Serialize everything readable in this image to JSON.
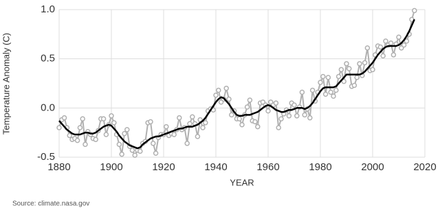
{
  "chart_data": {
    "type": "line",
    "y_label": "Temperature Anomaly (C)",
    "x_label": "YEAR",
    "source": "Source: climate.nasa.gov",
    "x": [
      1880,
      1881,
      1882,
      1883,
      1884,
      1885,
      1886,
      1887,
      1888,
      1889,
      1890,
      1891,
      1892,
      1893,
      1894,
      1895,
      1896,
      1897,
      1898,
      1899,
      1900,
      1901,
      1902,
      1903,
      1904,
      1905,
      1906,
      1907,
      1908,
      1909,
      1910,
      1911,
      1912,
      1913,
      1914,
      1915,
      1916,
      1917,
      1918,
      1919,
      1920,
      1921,
      1922,
      1923,
      1924,
      1925,
      1926,
      1927,
      1928,
      1929,
      1930,
      1931,
      1932,
      1933,
      1934,
      1935,
      1936,
      1937,
      1938,
      1939,
      1940,
      1941,
      1942,
      1943,
      1944,
      1945,
      1946,
      1947,
      1948,
      1949,
      1950,
      1951,
      1952,
      1953,
      1954,
      1955,
      1956,
      1957,
      1958,
      1959,
      1960,
      1961,
      1962,
      1963,
      1964,
      1965,
      1966,
      1967,
      1968,
      1969,
      1970,
      1971,
      1972,
      1973,
      1974,
      1975,
      1976,
      1977,
      1978,
      1979,
      1980,
      1981,
      1982,
      1983,
      1984,
      1985,
      1986,
      1987,
      1988,
      1989,
      1990,
      1991,
      1992,
      1993,
      1994,
      1995,
      1996,
      1997,
      1998,
      1999,
      2000,
      2001,
      2002,
      2003,
      2004,
      2005,
      2006,
      2007,
      2008,
      2009,
      2010,
      2011,
      2012,
      2013,
      2014,
      2015,
      2016
    ],
    "series": [
      {
        "color": "#b0b0b0",
        "markers": true,
        "values": [
          -0.2,
          -0.12,
          -0.1,
          -0.2,
          -0.28,
          -0.32,
          -0.31,
          -0.33,
          -0.2,
          -0.11,
          -0.37,
          -0.24,
          -0.27,
          -0.31,
          -0.32,
          -0.23,
          -0.11,
          -0.11,
          -0.27,
          -0.17,
          -0.08,
          -0.15,
          -0.27,
          -0.37,
          -0.47,
          -0.26,
          -0.22,
          -0.39,
          -0.43,
          -0.48,
          -0.43,
          -0.44,
          -0.36,
          -0.34,
          -0.15,
          -0.14,
          -0.36,
          -0.46,
          -0.3,
          -0.27,
          -0.27,
          -0.19,
          -0.28,
          -0.26,
          -0.27,
          -0.22,
          -0.1,
          -0.22,
          -0.2,
          -0.36,
          -0.16,
          -0.09,
          -0.16,
          -0.29,
          -0.12,
          -0.2,
          -0.15,
          -0.03,
          -0.01,
          -0.02,
          0.13,
          0.18,
          0.06,
          0.09,
          0.2,
          0.09,
          -0.07,
          -0.03,
          -0.11,
          -0.11,
          -0.17,
          -0.07,
          0.01,
          0.08,
          -0.13,
          -0.14,
          -0.19,
          0.05,
          0.06,
          0.03,
          -0.03,
          0.06,
          0.03,
          0.05,
          -0.2,
          -0.11,
          -0.06,
          -0.02,
          -0.08,
          0.05,
          0.03,
          -0.08,
          0.01,
          0.16,
          -0.07,
          -0.01,
          -0.1,
          0.18,
          0.07,
          0.16,
          0.26,
          0.32,
          0.14,
          0.31,
          0.16,
          0.12,
          0.18,
          0.32,
          0.39,
          0.27,
          0.45,
          0.4,
          0.22,
          0.23,
          0.31,
          0.45,
          0.33,
          0.46,
          0.61,
          0.38,
          0.39,
          0.54,
          0.63,
          0.62,
          0.53,
          0.68,
          0.64,
          0.66,
          0.54,
          0.65,
          0.72,
          0.61,
          0.64,
          0.68,
          0.75,
          0.9,
          0.99
        ]
      },
      {
        "color": "#000000",
        "markers": false,
        "values": [
          -0.13,
          -0.16,
          -0.19,
          -0.22,
          -0.24,
          -0.26,
          -0.27,
          -0.27,
          -0.27,
          -0.26,
          -0.25,
          -0.25,
          -0.26,
          -0.26,
          -0.25,
          -0.23,
          -0.21,
          -0.19,
          -0.18,
          -0.17,
          -0.18,
          -0.21,
          -0.24,
          -0.28,
          -0.31,
          -0.34,
          -0.36,
          -0.38,
          -0.39,
          -0.4,
          -0.41,
          -0.4,
          -0.37,
          -0.35,
          -0.33,
          -0.31,
          -0.3,
          -0.29,
          -0.29,
          -0.28,
          -0.27,
          -0.26,
          -0.25,
          -0.24,
          -0.23,
          -0.22,
          -0.21,
          -0.21,
          -0.2,
          -0.19,
          -0.19,
          -0.19,
          -0.18,
          -0.17,
          -0.15,
          -0.13,
          -0.1,
          -0.06,
          -0.02,
          0.02,
          0.06,
          0.09,
          0.11,
          0.1,
          0.07,
          0.04,
          0.0,
          -0.04,
          -0.07,
          -0.08,
          -0.08,
          -0.07,
          -0.07,
          -0.07,
          -0.06,
          -0.05,
          -0.04,
          -0.02,
          0.0,
          0.02,
          0.03,
          0.02,
          0.0,
          -0.02,
          -0.03,
          -0.04,
          -0.04,
          -0.03,
          -0.02,
          -0.02,
          -0.01,
          0.0,
          0.0,
          0.0,
          -0.01,
          0.0,
          0.02,
          0.05,
          0.09,
          0.13,
          0.17,
          0.2,
          0.21,
          0.21,
          0.21,
          0.21,
          0.22,
          0.25,
          0.28,
          0.31,
          0.34,
          0.34,
          0.34,
          0.34,
          0.34,
          0.34,
          0.35,
          0.37,
          0.4,
          0.43,
          0.46,
          0.5,
          0.54,
          0.57,
          0.6,
          0.62,
          0.63,
          0.63,
          0.63,
          0.63,
          0.64,
          0.66,
          0.69,
          0.73,
          0.78,
          0.84,
          0.9
        ]
      }
    ],
    "xlim": [
      1880,
      2020
    ],
    "xticks": [
      1880,
      1900,
      1920,
      1940,
      1960,
      1980,
      2000,
      2020
    ],
    "ylim": [
      -0.5,
      1.0
    ],
    "yticks": [
      {
        "value": -0.5,
        "label": "-0.5"
      },
      {
        "value": 0,
        "label": "0.0"
      },
      {
        "value": 0.5,
        "label": "0.5"
      },
      {
        "value": 1.0,
        "label": "1.0"
      }
    ],
    "grid": true
  }
}
